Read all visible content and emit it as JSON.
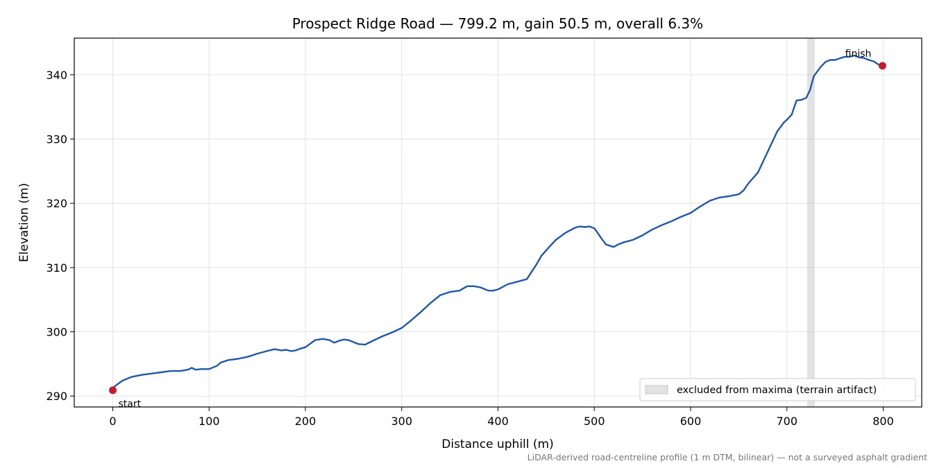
{
  "chart_data": {
    "type": "line",
    "title": "Prospect Ridge Road — 799.2 m, gain 50.5 m, overall 6.3%",
    "xlabel": "Distance uphill (m)",
    "ylabel": "Elevation (m)",
    "xlim": [
      -40,
      840
    ],
    "ylim": [
      288.3,
      345.7
    ],
    "xticks": [
      0,
      100,
      200,
      300,
      400,
      500,
      600,
      700,
      800
    ],
    "yticks": [
      290,
      300,
      310,
      320,
      330,
      340
    ],
    "grid": true,
    "series": [
      {
        "color": "#1f57a8",
        "x": [
          0,
          10,
          20,
          30,
          40,
          50,
          60,
          70,
          78,
          82,
          86,
          92,
          100,
          108,
          112,
          120,
          130,
          140,
          150,
          160,
          168,
          175,
          180,
          185,
          190,
          195,
          200,
          210,
          218,
          225,
          230,
          235,
          240,
          245,
          255,
          262,
          270,
          280,
          290,
          300,
          310,
          320,
          330,
          340,
          350,
          360,
          368,
          375,
          382,
          390,
          395,
          400,
          410,
          420,
          430,
          440,
          445,
          452,
          460,
          470,
          480,
          485,
          490,
          495,
          500,
          503,
          507,
          512,
          520,
          525,
          530,
          540,
          550,
          560,
          570,
          580,
          590,
          600,
          610,
          620,
          630,
          640,
          650,
          655,
          660,
          670,
          680,
          690,
          697,
          700,
          705,
          710,
          715,
          720,
          724,
          728,
          735,
          740,
          745,
          750,
          760,
          765,
          770,
          775,
          780,
          785,
          790,
          795,
          799
        ],
        "y": [
          291.3,
          292.4,
          293.0,
          293.3,
          293.5,
          293.7,
          293.9,
          293.9,
          294.1,
          294.4,
          294.1,
          294.2,
          294.2,
          294.7,
          295.2,
          295.6,
          295.8,
          296.1,
          296.6,
          297.0,
          297.3,
          297.1,
          297.2,
          297.0,
          297.1,
          297.4,
          297.6,
          298.7,
          298.9,
          298.7,
          298.3,
          298.6,
          298.8,
          298.7,
          298.1,
          298.0,
          298.6,
          299.3,
          299.9,
          300.6,
          301.8,
          303.1,
          304.5,
          305.7,
          306.2,
          306.4,
          307.1,
          307.1,
          306.9,
          306.4,
          306.4,
          306.6,
          307.4,
          307.8,
          308.2,
          310.5,
          311.8,
          313.0,
          314.3,
          315.4,
          316.2,
          316.4,
          316.3,
          316.4,
          316.1,
          315.5,
          314.6,
          313.6,
          313.2,
          313.6,
          313.9,
          314.3,
          315.0,
          315.9,
          316.6,
          317.2,
          317.9,
          318.5,
          319.5,
          320.4,
          320.9,
          321.1,
          321.4,
          322.0,
          323.1,
          324.8,
          328.0,
          331.2,
          332.6,
          333.0,
          333.8,
          336.0,
          336.1,
          336.4,
          337.6,
          339.8,
          341.2,
          342.0,
          342.3,
          342.3,
          342.8,
          342.8,
          343.0,
          342.7,
          342.6,
          342.3,
          342.1,
          341.6,
          341.4
        ]
      }
    ],
    "endpoints": [
      {
        "label": "start",
        "x": 0,
        "y": 290.9,
        "color": "#c0202e"
      },
      {
        "label": "finish",
        "x": 799.2,
        "y": 341.4,
        "color": "#c0202e"
      }
    ],
    "excluded_band": {
      "x": [
        721,
        729
      ],
      "color": "#bfbfbf",
      "label": "excluded from maxima (terrain artifact)"
    },
    "legend_position": "lower-right",
    "footnote": "LiDAR-derived road-centreline profile (1 m DTM, bilinear) — not a surveyed asphalt gradient"
  }
}
